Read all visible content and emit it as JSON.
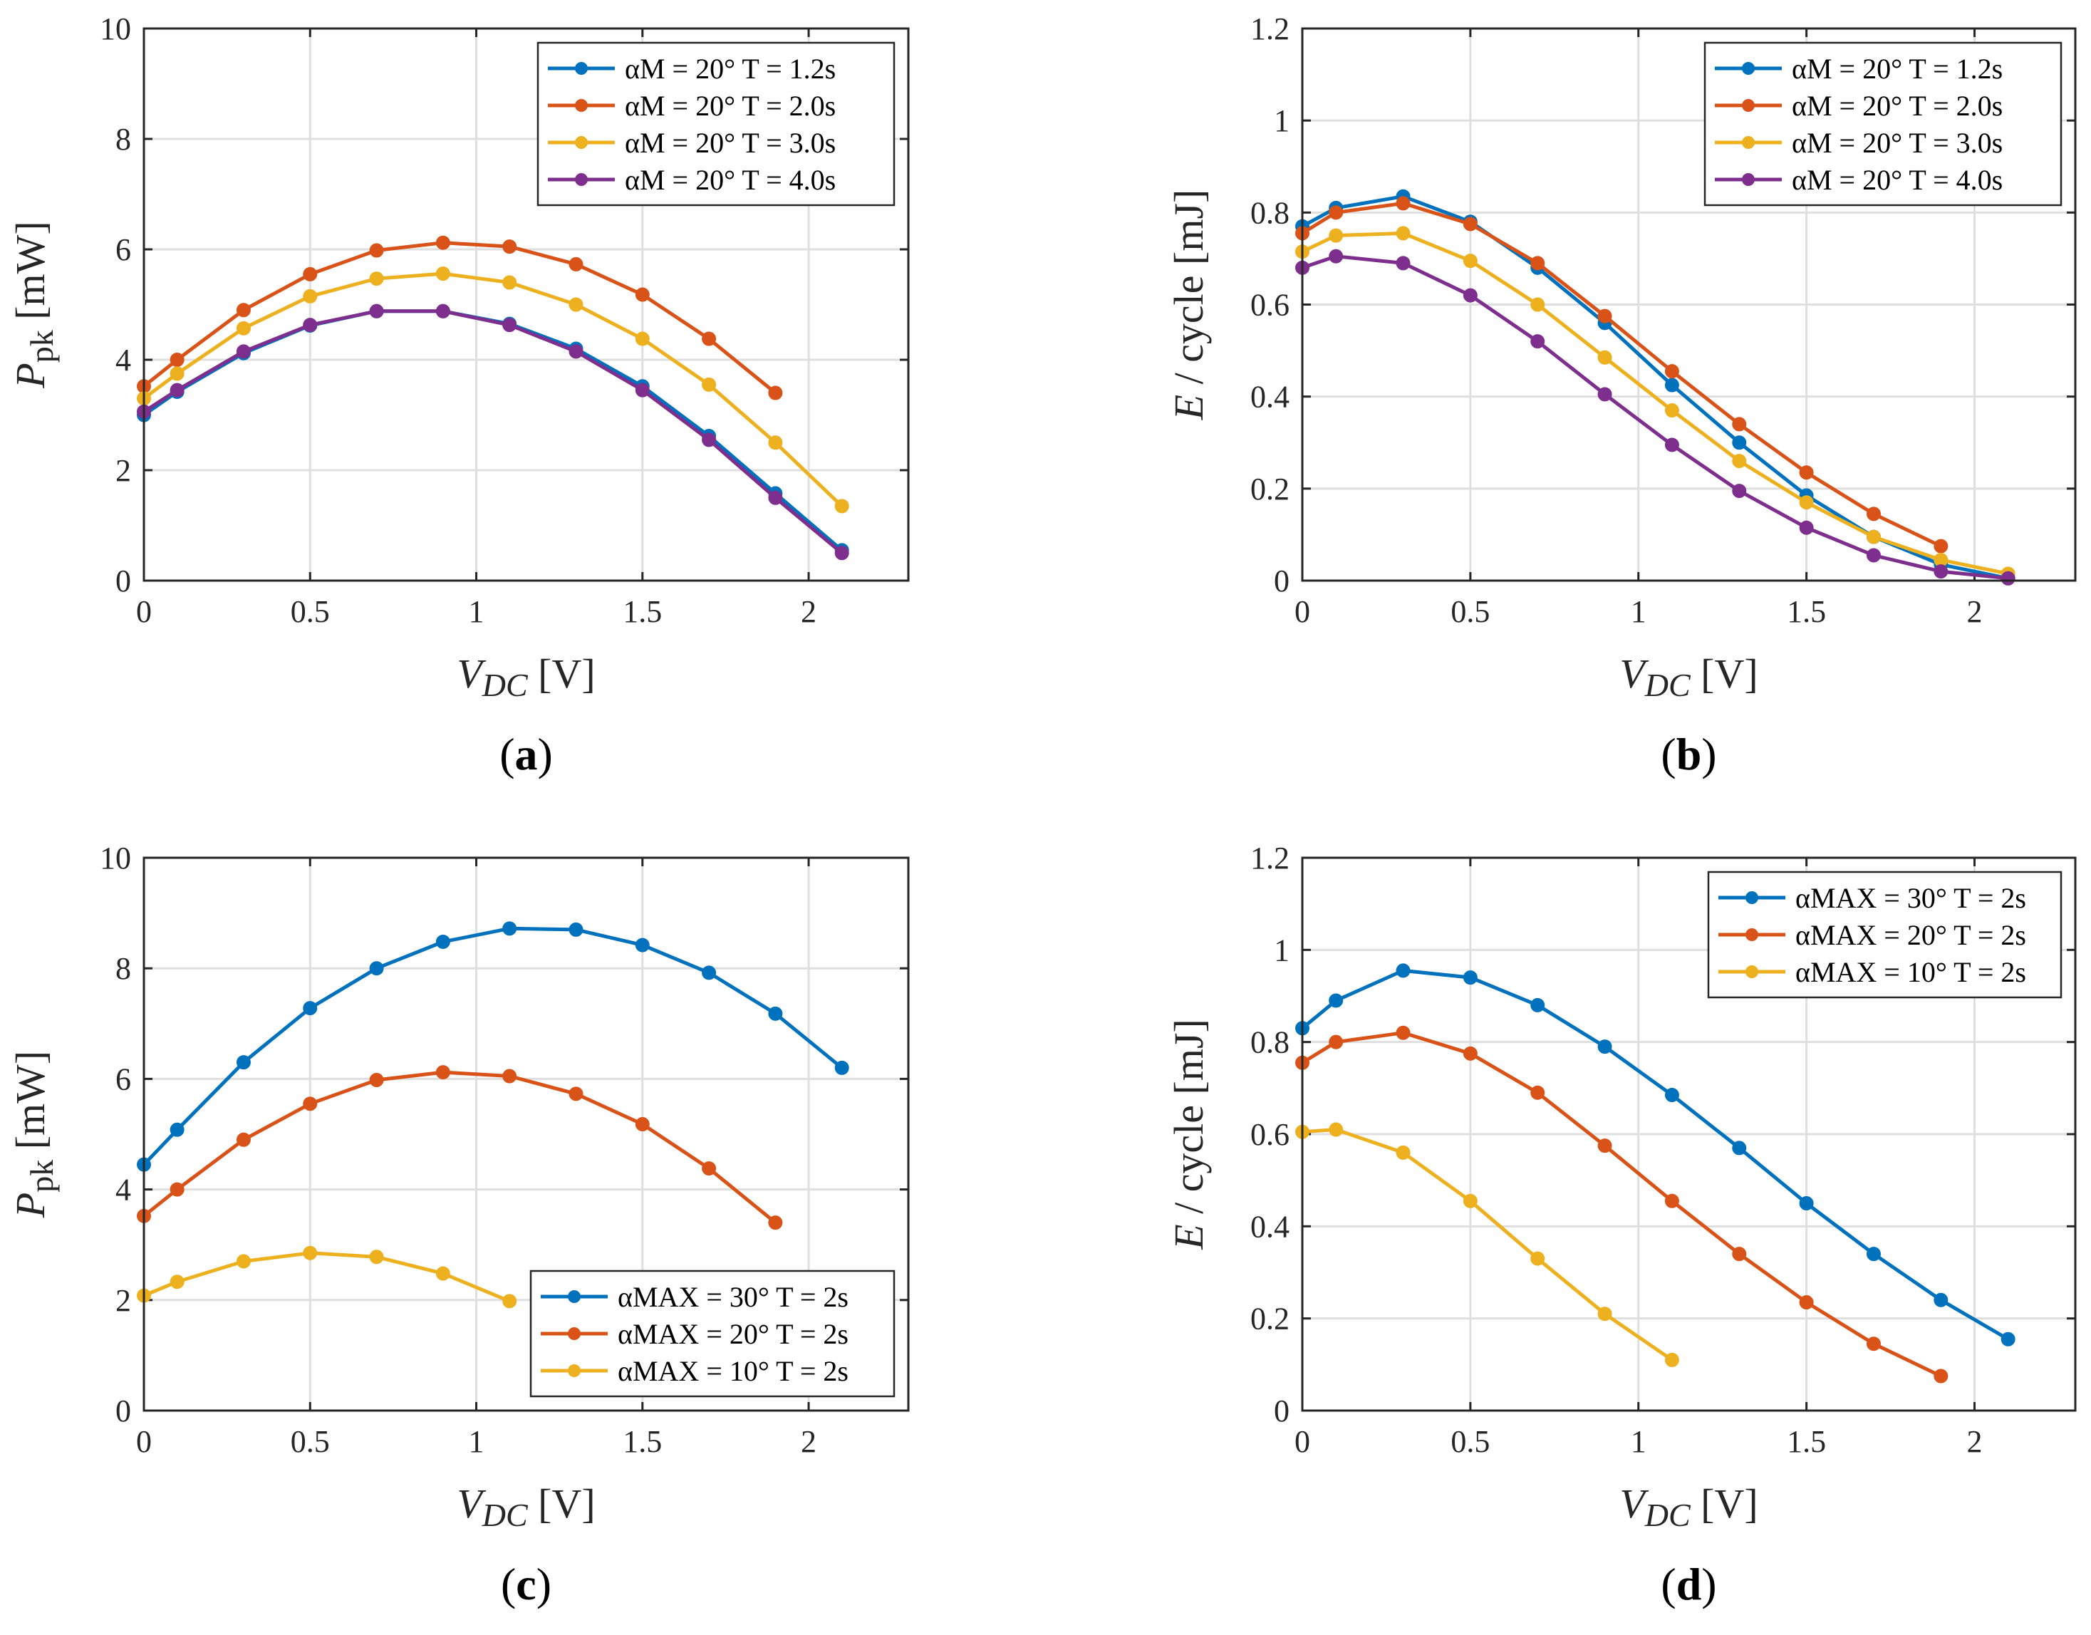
{
  "colors": {
    "blue": "#0072BD",
    "orange": "#D95319",
    "yellow": "#EDB120",
    "purple": "#7E2F8E"
  },
  "chart_data": [
    {
      "panel": "a",
      "type": "line",
      "caption": "(a)",
      "xlabel": "V_DC [V]",
      "ylabel": "P_pk [mW]",
      "xlim": [
        0,
        2.3
      ],
      "ylim": [
        0,
        10
      ],
      "xticks": [
        0,
        0.5,
        1,
        1.5,
        2
      ],
      "yticks": [
        0,
        2,
        4,
        6,
        8,
        10
      ],
      "grid": true,
      "legend_position": "top-right",
      "x": [
        0,
        0.1,
        0.3,
        0.5,
        0.7,
        0.9,
        1.1,
        1.3,
        1.5,
        1.7,
        1.9,
        2.1
      ],
      "series": [
        {
          "name": "αM = 20° T = 1.2s",
          "color": "#0072BD",
          "values": [
            3.0,
            3.42,
            4.12,
            4.62,
            4.88,
            4.88,
            4.65,
            4.2,
            3.52,
            2.62,
            1.58,
            0.55
          ]
        },
        {
          "name": "αM = 20° T = 2.0s",
          "color": "#D95319",
          "values": [
            3.52,
            4.0,
            4.9,
            5.55,
            5.98,
            6.12,
            6.05,
            5.73,
            5.18,
            4.38,
            3.4,
            null
          ]
        },
        {
          "name": "αM = 20° T = 3.0s",
          "color": "#EDB120",
          "values": [
            3.3,
            3.75,
            4.57,
            5.15,
            5.47,
            5.56,
            5.4,
            5.0,
            4.38,
            3.55,
            2.5,
            1.35
          ]
        },
        {
          "name": "αM = 20° T = 4.0s",
          "color": "#7E2F8E",
          "values": [
            3.06,
            3.45,
            4.15,
            4.63,
            4.88,
            4.88,
            4.63,
            4.15,
            3.45,
            2.55,
            1.5,
            0.5
          ]
        }
      ]
    },
    {
      "panel": "b",
      "type": "line",
      "caption": "(b)",
      "xlabel": "V_DC [V]",
      "ylabel": "E / cycle [mJ]",
      "xlim": [
        0,
        2.3
      ],
      "ylim": [
        0,
        1.2
      ],
      "xticks": [
        0,
        0.5,
        1,
        1.5,
        2
      ],
      "yticks": [
        0,
        0.2,
        0.4,
        0.6,
        0.8,
        1,
        1.2
      ],
      "grid": true,
      "legend_position": "top-right",
      "x": [
        0,
        0.1,
        0.3,
        0.5,
        0.7,
        0.9,
        1.1,
        1.3,
        1.5,
        1.7,
        1.9,
        2.1
      ],
      "series": [
        {
          "name": "αM = 20° T = 1.2s",
          "color": "#0072BD",
          "values": [
            0.77,
            0.81,
            0.835,
            0.78,
            0.68,
            0.56,
            0.425,
            0.3,
            0.185,
            0.095,
            0.035,
            0.005
          ]
        },
        {
          "name": "αM = 20° T = 2.0s",
          "color": "#D95319",
          "values": [
            0.755,
            0.8,
            0.82,
            0.775,
            0.69,
            0.575,
            0.455,
            0.34,
            0.235,
            0.145,
            0.075,
            null
          ]
        },
        {
          "name": "αM = 20° T = 3.0s",
          "color": "#EDB120",
          "values": [
            0.715,
            0.75,
            0.755,
            0.695,
            0.6,
            0.485,
            0.37,
            0.26,
            0.17,
            0.095,
            0.045,
            0.015
          ]
        },
        {
          "name": "αM = 20° T = 4.0s",
          "color": "#7E2F8E",
          "values": [
            0.68,
            0.705,
            0.69,
            0.62,
            0.52,
            0.405,
            0.295,
            0.195,
            0.115,
            0.055,
            0.02,
            0.005
          ]
        }
      ]
    },
    {
      "panel": "c",
      "type": "line",
      "caption": "(c)",
      "xlabel": "V_DC [V]",
      "ylabel": "P_pk [mW]",
      "xlim": [
        0,
        2.3
      ],
      "ylim": [
        0,
        10
      ],
      "xticks": [
        0,
        0.5,
        1,
        1.5,
        2
      ],
      "yticks": [
        0,
        2,
        4,
        6,
        8,
        10
      ],
      "grid": true,
      "legend_position": "bottom-right",
      "x": [
        0,
        0.1,
        0.3,
        0.5,
        0.7,
        0.9,
        1.1,
        1.3,
        1.5,
        1.7,
        1.9,
        2.1
      ],
      "series": [
        {
          "name": "αMAX = 30° T = 2s",
          "color": "#0072BD",
          "values": [
            4.45,
            5.08,
            6.3,
            7.28,
            8.0,
            8.48,
            8.72,
            8.7,
            8.42,
            7.92,
            7.18,
            6.2
          ]
        },
        {
          "name": "αMAX = 20° T = 2s",
          "color": "#D95319",
          "values": [
            3.52,
            4.0,
            4.9,
            5.55,
            5.98,
            6.12,
            6.05,
            5.73,
            5.18,
            4.38,
            3.4,
            null
          ]
        },
        {
          "name": "αMAX = 10° T = 2s",
          "color": "#EDB120",
          "values": [
            2.08,
            2.33,
            2.7,
            2.85,
            2.78,
            2.48,
            1.98,
            null,
            null,
            null,
            null,
            null
          ]
        }
      ]
    },
    {
      "panel": "d",
      "type": "line",
      "caption": "(d)",
      "xlabel": "V_DC [V]",
      "ylabel": "E / cycle [mJ]",
      "xlim": [
        0,
        2.3
      ],
      "ylim": [
        0,
        1.2
      ],
      "xticks": [
        0,
        0.5,
        1,
        1.5,
        2
      ],
      "yticks": [
        0,
        0.2,
        0.4,
        0.6,
        0.8,
        1,
        1.2
      ],
      "grid": true,
      "legend_position": "top-right",
      "x": [
        0,
        0.1,
        0.3,
        0.5,
        0.7,
        0.9,
        1.1,
        1.3,
        1.5,
        1.7,
        1.9,
        2.1
      ],
      "series": [
        {
          "name": "αMAX = 30° T = 2s",
          "color": "#0072BD",
          "values": [
            0.83,
            0.89,
            0.955,
            0.94,
            0.88,
            0.79,
            0.685,
            0.57,
            0.45,
            0.34,
            0.24,
            0.155
          ]
        },
        {
          "name": "αMAX = 20° T = 2s",
          "color": "#D95319",
          "values": [
            0.755,
            0.8,
            0.82,
            0.775,
            0.69,
            0.575,
            0.455,
            0.34,
            0.235,
            0.145,
            0.075,
            null
          ]
        },
        {
          "name": "αMAX = 10° T = 2s",
          "color": "#EDB120",
          "values": [
            0.605,
            0.61,
            0.56,
            0.455,
            0.33,
            0.21,
            0.11,
            null,
            null,
            null,
            null,
            null
          ]
        }
      ]
    }
  ]
}
